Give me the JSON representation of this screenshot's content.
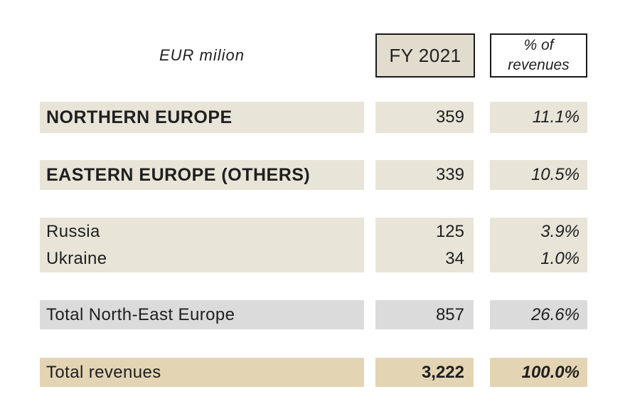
{
  "table": {
    "unit_label": "EUR milion",
    "columns": [
      {
        "label": "FY 2021"
      },
      {
        "label": "% of revenues"
      }
    ],
    "rows": [
      {
        "label": "NORTHERN EUROPE",
        "value": "359",
        "pct": "11.1%"
      },
      {
        "label": "EASTERN EUROPE (OTHERS)",
        "value": "339",
        "pct": "10.5%"
      },
      {
        "label": "Russia",
        "value": "125",
        "pct": "3.9%"
      },
      {
        "label": "Ukraine",
        "value": "34",
        "pct": "1.0%"
      },
      {
        "label": "Total North-East Europe",
        "value": "857",
        "pct": "26.6%"
      },
      {
        "label": "Total revenues",
        "value": "3,222",
        "pct": "100.0%"
      }
    ],
    "colors": {
      "row_beige": "#e8e4d8",
      "header_box_beige": "#e2dccf",
      "subtotal_grey": "#dbdbdb",
      "total_tan": "#e3d4b4",
      "border": "#1a1a1a",
      "text": "#1f1f1f"
    }
  }
}
